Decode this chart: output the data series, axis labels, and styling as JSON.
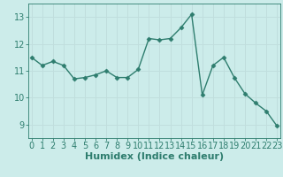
{
  "x": [
    0,
    1,
    2,
    3,
    4,
    5,
    6,
    7,
    8,
    9,
    10,
    11,
    12,
    13,
    14,
    15,
    16,
    17,
    18,
    19,
    20,
    21,
    22,
    23
  ],
  "y": [
    11.5,
    11.2,
    11.35,
    11.2,
    10.7,
    10.75,
    10.85,
    11.0,
    10.75,
    10.75,
    11.05,
    12.2,
    12.15,
    12.2,
    12.6,
    13.1,
    10.1,
    11.2,
    11.5,
    10.75,
    10.15,
    9.8,
    9.5,
    8.95
  ],
  "line_color": "#2e7d6e",
  "marker": "D",
  "markersize": 2.5,
  "linewidth": 1.0,
  "bg_color": "#ccecea",
  "grid_color": "#c0dedd",
  "xlabel": "Humidex (Indice chaleur)",
  "xlabel_fontsize": 8,
  "tick_fontsize": 7,
  "ylim": [
    8.5,
    13.5
  ],
  "yticks": [
    9,
    10,
    11,
    12,
    13
  ],
  "xticks": [
    0,
    1,
    2,
    3,
    4,
    5,
    6,
    7,
    8,
    9,
    10,
    11,
    12,
    13,
    14,
    15,
    16,
    17,
    18,
    19,
    20,
    21,
    22,
    23
  ],
  "xlim": [
    -0.3,
    23.3
  ]
}
